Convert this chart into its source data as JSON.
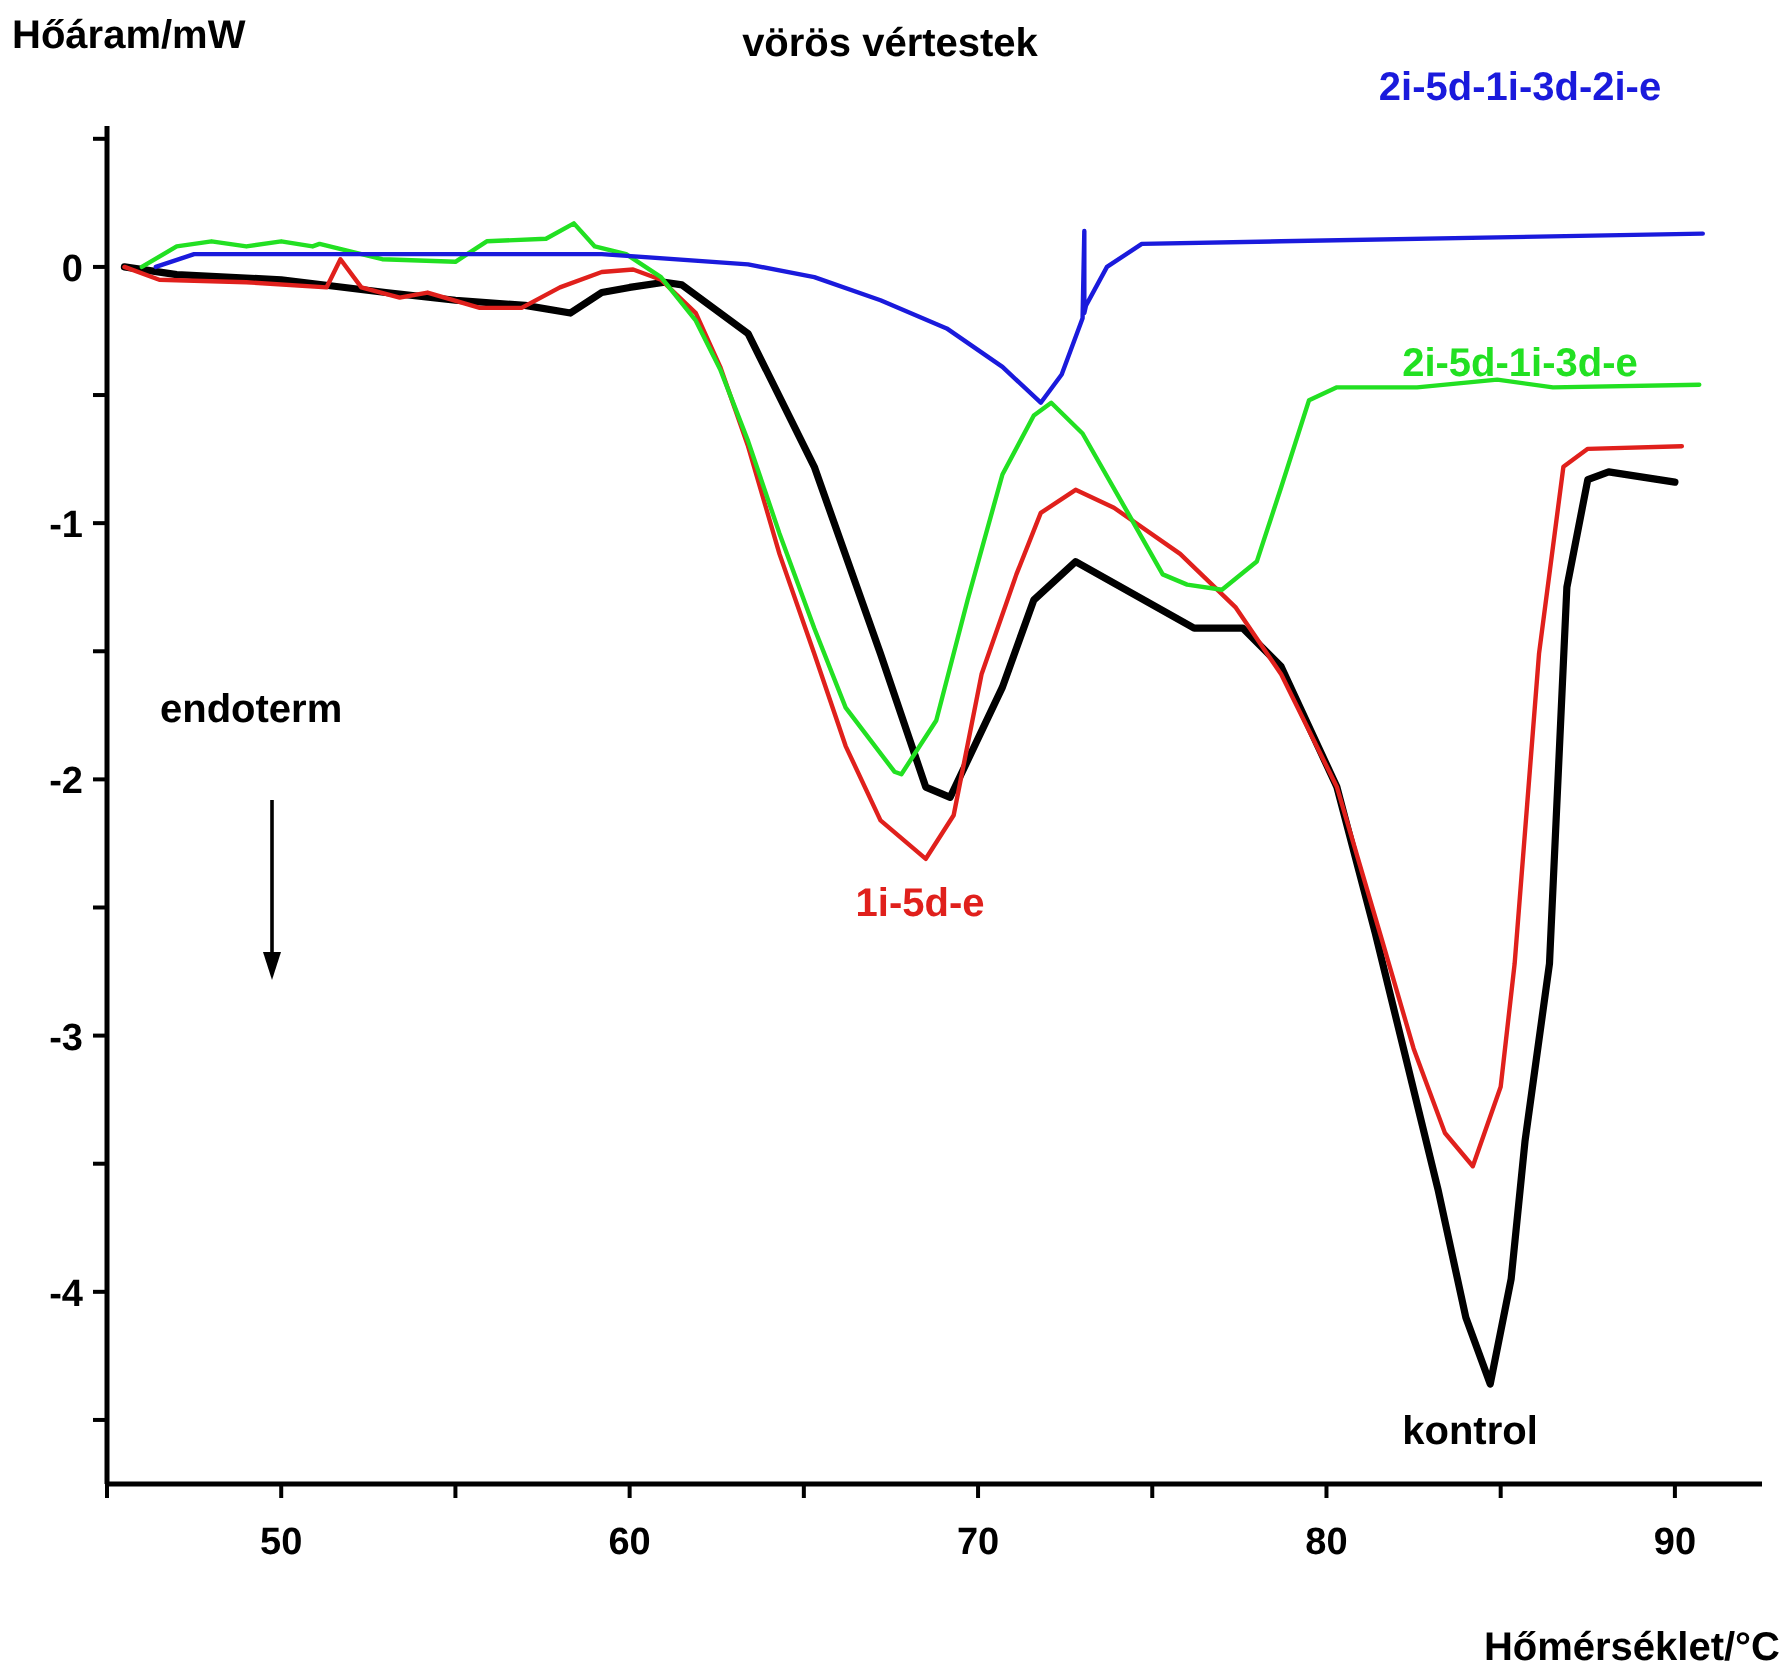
{
  "chart_data": {
    "type": "line",
    "title": "vörös vértestek",
    "xlabel": "Hőmérséklet/°C",
    "ylabel": "Hőáram/mW",
    "annotations": [
      "endoterm"
    ],
    "xlim": [
      45,
      92.5
    ],
    "ylim": [
      -4.75,
      0.55
    ],
    "xticks": [
      {
        "value": 45,
        "label": null
      },
      50,
      {
        "value": 55,
        "label": null
      },
      60,
      {
        "value": 65,
        "label": null
      },
      70,
      {
        "value": 75,
        "label": null
      },
      80,
      {
        "value": 85,
        "label": null
      },
      90
    ],
    "yticks": [
      {
        "value": 0.5,
        "label": null
      },
      0,
      {
        "value": -0.5,
        "label": null
      },
      -1,
      {
        "value": -1.5,
        "label": null
      },
      -2,
      {
        "value": -2.5,
        "label": null
      },
      -3,
      {
        "value": -3.5,
        "label": null
      },
      -4,
      {
        "value": -4.5,
        "label": null
      }
    ],
    "grid": false,
    "marker": "none",
    "line_style": "solid",
    "series": [
      {
        "name": "kontrol",
        "color": "#000000",
        "x": [
          45.5,
          47,
          50,
          53,
          55,
          57,
          58.3,
          59.2,
          60,
          61,
          61.5,
          63.4,
          65.3,
          67.2,
          68.5,
          69.2,
          70.7,
          71.6,
          72.8,
          74.5,
          76.2,
          77.6,
          78.7,
          80.3,
          81.4,
          82.3,
          83.2,
          84,
          84.7,
          85.3,
          85.7,
          86.4,
          86.9,
          87.5,
          88.1,
          90
        ],
        "values": [
          0,
          -0.03,
          -0.05,
          -0.1,
          -0.13,
          -0.15,
          -0.18,
          -0.1,
          -0.08,
          -0.06,
          -0.07,
          -0.26,
          -0.78,
          -1.51,
          -2.03,
          -2.07,
          -1.64,
          -1.3,
          -1.15,
          -1.28,
          -1.41,
          -1.41,
          -1.56,
          -2.03,
          -2.6,
          -3.1,
          -3.6,
          -4.1,
          -4.36,
          -3.95,
          -3.41,
          -2.72,
          -1.25,
          -0.83,
          -0.8,
          -0.84
        ]
      },
      {
        "name": "1i-5d-e",
        "color": "#e0201c",
        "x": [
          45.5,
          46.5,
          49,
          51.3,
          51.7,
          52.3,
          53.4,
          54.2,
          55.7,
          56.9,
          58,
          59.2,
          60.1,
          60.9,
          61.9,
          62.6,
          63.4,
          64.3,
          65.3,
          66.2,
          67.2,
          68.5,
          69.3,
          70.1,
          71.1,
          71.8,
          72.8,
          73.9,
          75.8,
          77.4,
          78.7,
          80.3,
          81.6,
          82.5,
          83.4,
          84.2,
          85,
          85.4,
          86.1,
          86.8,
          87.5,
          90.2
        ],
        "values": [
          0,
          -0.05,
          -0.06,
          -0.08,
          0.03,
          -0.08,
          -0.12,
          -0.1,
          -0.16,
          -0.16,
          -0.08,
          -0.02,
          -0.01,
          -0.05,
          -0.18,
          -0.39,
          -0.7,
          -1.12,
          -1.51,
          -1.87,
          -2.16,
          -2.31,
          -2.14,
          -1.59,
          -1.2,
          -0.96,
          -0.87,
          -0.94,
          -1.12,
          -1.33,
          -1.59,
          -2.03,
          -2.63,
          -3.05,
          -3.38,
          -3.51,
          -3.2,
          -2.72,
          -1.51,
          -0.78,
          -0.71,
          -0.7
        ]
      },
      {
        "name": "2i-5d-1i-3d-e",
        "color": "#22e022",
        "x": [
          46,
          47,
          48,
          49,
          50,
          50.9,
          51.1,
          52.9,
          55,
          55.9,
          57.6,
          58.4,
          59,
          59.9,
          60.9,
          61.9,
          62.6,
          63.4,
          64.3,
          65.3,
          66.2,
          67.6,
          67.8,
          68.8,
          69.7,
          70.7,
          71.6,
          72.1,
          73,
          74.3,
          75.3,
          76,
          77,
          78,
          78.7,
          79.5,
          80.3,
          82.6,
          84.9,
          86.5,
          90.7
        ],
        "values": [
          0,
          0.08,
          0.1,
          0.08,
          0.1,
          0.08,
          0.09,
          0.03,
          0.02,
          0.1,
          0.11,
          0.17,
          0.08,
          0.05,
          -0.04,
          -0.21,
          -0.4,
          -0.68,
          -1.04,
          -1.41,
          -1.72,
          -1.97,
          -1.98,
          -1.77,
          -1.3,
          -0.81,
          -0.58,
          -0.53,
          -0.65,
          -0.96,
          -1.2,
          -1.24,
          -1.26,
          -1.15,
          -0.86,
          -0.52,
          -0.47,
          -0.47,
          -0.44,
          -0.47,
          -0.46
        ]
      },
      {
        "name": "2i-5d-1i-3d-2i-e",
        "color": "#1a1adc",
        "x": [
          46.4,
          47.5,
          50,
          55,
          59.2,
          63.4,
          65.3,
          67.2,
          69.1,
          70.7,
          71.8,
          72.4,
          73,
          73.05,
          73.05,
          73.1,
          73.7,
          74.7,
          78.7,
          90.8
        ],
        "values": [
          0,
          0.05,
          0.05,
          0.05,
          0.05,
          0.01,
          -0.04,
          -0.13,
          -0.24,
          -0.39,
          -0.53,
          -0.42,
          -0.2,
          0.14,
          -0.18,
          -0.15,
          0,
          0.09,
          0.1,
          0.13
        ]
      }
    ]
  }
}
